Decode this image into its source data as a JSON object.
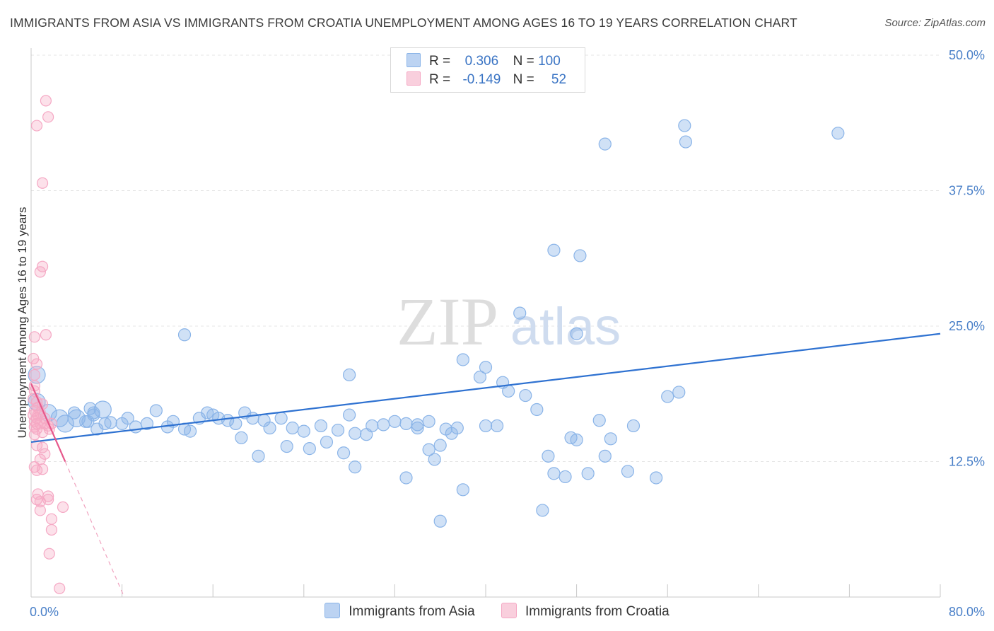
{
  "chart_data": {
    "type": "scatter",
    "title": "IMMIGRANTS FROM ASIA VS IMMIGRANTS FROM CROATIA UNEMPLOYMENT AMONG AGES 16 TO 19 YEARS CORRELATION CHART",
    "source": "Source: ZipAtlas.com",
    "ylabel": "Unemployment Among Ages 16 to 19 years",
    "xlim": [
      0,
      80
    ],
    "ylim": [
      0,
      50
    ],
    "x_tick_labels": [
      "0.0%",
      "80.0%"
    ],
    "y_ticks": [
      12.5,
      25.0,
      37.5,
      50.0
    ],
    "y_tick_labels": [
      "12.5%",
      "25.0%",
      "37.5%",
      "50.0%"
    ],
    "watermark": {
      "zip": "ZIP",
      "atlas": "atlas"
    },
    "legend": [
      {
        "r_label": "R =",
        "r_value": "0.306",
        "n_label": "N =",
        "n_value": "100"
      },
      {
        "r_label": "R =",
        "r_value": "-0.149",
        "n_label": "N =",
        "n_value": "52"
      }
    ],
    "series": [
      {
        "name": "Immigrants from Asia",
        "color": "#8ab4e8",
        "line_color": "#2f72d1",
        "trend": [
          [
            0,
            14.3
          ],
          [
            80,
            24.3
          ]
        ],
        "points": [
          [
            0.5,
            20.5,
            2
          ],
          [
            0.5,
            18.0,
            2
          ],
          [
            1.5,
            17.0,
            2
          ],
          [
            2.5,
            16.5,
            2
          ],
          [
            3.0,
            16.0,
            2
          ],
          [
            4.0,
            16.5,
            2
          ],
          [
            5.0,
            16.2,
            1
          ],
          [
            3.8,
            17.0,
            1
          ],
          [
            6.3,
            17.3,
            2
          ],
          [
            4.8,
            16.2,
            1
          ],
          [
            6.5,
            16.0,
            1
          ],
          [
            7.0,
            16.1,
            1
          ],
          [
            5.5,
            16.8,
            1
          ],
          [
            5.8,
            15.5,
            1
          ],
          [
            5.5,
            17.0,
            1
          ],
          [
            5.2,
            17.4,
            1
          ],
          [
            8.0,
            16.0,
            1
          ],
          [
            8.5,
            16.5,
            1
          ],
          [
            9.2,
            15.7,
            1
          ],
          [
            10.2,
            16.0,
            1
          ],
          [
            11.0,
            17.2,
            1
          ],
          [
            12.0,
            15.7,
            1
          ],
          [
            12.5,
            16.2,
            1
          ],
          [
            13.5,
            15.5,
            1
          ],
          [
            14.0,
            15.3,
            1
          ],
          [
            14.8,
            16.5,
            1
          ],
          [
            15.5,
            17.0,
            1
          ],
          [
            16.0,
            16.8,
            1
          ],
          [
            16.5,
            16.5,
            1
          ],
          [
            17.3,
            16.3,
            1
          ],
          [
            18.0,
            16.0,
            1
          ],
          [
            18.8,
            17.0,
            1
          ],
          [
            19.5,
            16.5,
            1
          ],
          [
            20.5,
            16.3,
            1
          ],
          [
            21.0,
            15.6,
            1
          ],
          [
            22.0,
            16.5,
            1
          ],
          [
            23.0,
            15.6,
            1
          ],
          [
            24.0,
            15.3,
            1
          ],
          [
            25.5,
            15.8,
            1
          ],
          [
            27.0,
            15.4,
            1
          ],
          [
            28.0,
            16.8,
            1
          ],
          [
            28.5,
            15.1,
            1
          ],
          [
            29.5,
            15.0,
            1
          ],
          [
            30.0,
            15.8,
            1
          ],
          [
            31.0,
            15.9,
            1
          ],
          [
            32.0,
            16.2,
            1
          ],
          [
            33.0,
            16.0,
            1
          ],
          [
            34.0,
            15.6,
            1
          ],
          [
            35.0,
            16.2,
            1
          ],
          [
            36.5,
            15.5,
            1
          ],
          [
            37.5,
            15.6,
            1
          ],
          [
            18.5,
            14.7,
            1
          ],
          [
            20.0,
            13.0,
            1
          ],
          [
            22.5,
            13.9,
            1
          ],
          [
            24.5,
            13.7,
            1
          ],
          [
            26.0,
            14.3,
            1
          ],
          [
            27.5,
            13.3,
            1
          ],
          [
            28.5,
            12.0,
            1
          ],
          [
            33.0,
            11.0,
            1
          ],
          [
            34.0,
            15.9,
            1
          ],
          [
            35.0,
            13.6,
            1
          ],
          [
            35.5,
            12.7,
            1
          ],
          [
            36.0,
            14.0,
            1
          ],
          [
            37.0,
            15.1,
            1
          ],
          [
            38.0,
            9.9,
            1
          ],
          [
            40.0,
            15.8,
            1
          ],
          [
            41.0,
            15.8,
            1
          ],
          [
            43.5,
            18.6,
            1
          ],
          [
            44.5,
            17.3,
            1
          ],
          [
            45.5,
            13.0,
            1
          ],
          [
            46.0,
            11.4,
            1
          ],
          [
            47.0,
            11.1,
            1
          ],
          [
            47.5,
            14.7,
            1
          ],
          [
            48.0,
            14.5,
            1
          ],
          [
            49.0,
            11.4,
            1
          ],
          [
            50.0,
            16.3,
            1
          ],
          [
            50.5,
            13.0,
            1
          ],
          [
            51.0,
            14.6,
            1
          ],
          [
            52.5,
            11.6,
            1
          ],
          [
            53.0,
            15.8,
            1
          ],
          [
            55.0,
            11.0,
            1
          ],
          [
            57.0,
            18.9,
            1
          ],
          [
            57.5,
            43.5,
            1
          ],
          [
            57.6,
            42.0,
            1
          ],
          [
            50.5,
            41.8,
            1
          ],
          [
            46.0,
            32.0,
            1
          ],
          [
            56.0,
            18.5,
            1
          ],
          [
            48.3,
            31.5,
            1
          ],
          [
            48.0,
            24.3,
            1
          ],
          [
            45.0,
            8.0,
            1
          ],
          [
            38.0,
            21.9,
            1
          ],
          [
            39.5,
            20.3,
            1
          ],
          [
            40.0,
            21.2,
            1
          ],
          [
            41.5,
            19.8,
            1
          ],
          [
            42.0,
            19.0,
            1
          ],
          [
            43.0,
            26.2,
            1
          ],
          [
            36.0,
            7.0,
            1
          ],
          [
            28.0,
            20.5,
            1
          ],
          [
            13.5,
            24.2,
            1
          ],
          [
            71.0,
            42.8,
            1
          ]
        ]
      },
      {
        "name": "Immigrants from Croatia",
        "color": "#f5a8c4",
        "line_color": "#e6588b",
        "trend": [
          [
            0,
            19.7
          ],
          [
            3.0,
            12.5
          ]
        ],
        "trend_dashed": [
          [
            3.0,
            12.5
          ],
          [
            8.2,
            0
          ]
        ],
        "points": [
          [
            1.3,
            45.8
          ],
          [
            1.5,
            44.3
          ],
          [
            0.5,
            43.5
          ],
          [
            1.0,
            38.2
          ],
          [
            1.0,
            30.5
          ],
          [
            0.8,
            30.0
          ],
          [
            0.3,
            24.0
          ],
          [
            1.3,
            24.2
          ],
          [
            0.2,
            22.0
          ],
          [
            0.5,
            21.5
          ],
          [
            0.3,
            20.5
          ],
          [
            0.3,
            19.5
          ],
          [
            0.2,
            18.3
          ],
          [
            0.5,
            18.0
          ],
          [
            1.0,
            17.8
          ],
          [
            0.6,
            17.5
          ],
          [
            0.3,
            17.2
          ],
          [
            0.8,
            17.0
          ],
          [
            0.2,
            16.8
          ],
          [
            0.5,
            16.5
          ],
          [
            1.2,
            16.5
          ],
          [
            0.3,
            16.2
          ],
          [
            0.5,
            16.0
          ],
          [
            0.8,
            16.0
          ],
          [
            1.2,
            16.0
          ],
          [
            0.3,
            15.7
          ],
          [
            0.5,
            15.5
          ],
          [
            1.5,
            15.8
          ],
          [
            1.6,
            15.5
          ],
          [
            1.8,
            16.0
          ],
          [
            1.0,
            15.2
          ],
          [
            0.3,
            15.0
          ],
          [
            0.5,
            14.0
          ],
          [
            1.0,
            13.8
          ],
          [
            1.2,
            13.2
          ],
          [
            0.8,
            12.7
          ],
          [
            0.3,
            12.0
          ],
          [
            0.5,
            11.7
          ],
          [
            1.0,
            11.8
          ],
          [
            0.6,
            9.5
          ],
          [
            1.5,
            9.3
          ],
          [
            0.5,
            9.0
          ],
          [
            0.8,
            8.8
          ],
          [
            1.5,
            9.0
          ],
          [
            2.8,
            8.3
          ],
          [
            0.8,
            8.0
          ],
          [
            1.8,
            7.2
          ],
          [
            1.8,
            6.2
          ],
          [
            1.6,
            4.0
          ],
          [
            2.5,
            0.8
          ],
          [
            0.3,
            19.0
          ],
          [
            0.6,
            16.8
          ]
        ]
      }
    ]
  }
}
